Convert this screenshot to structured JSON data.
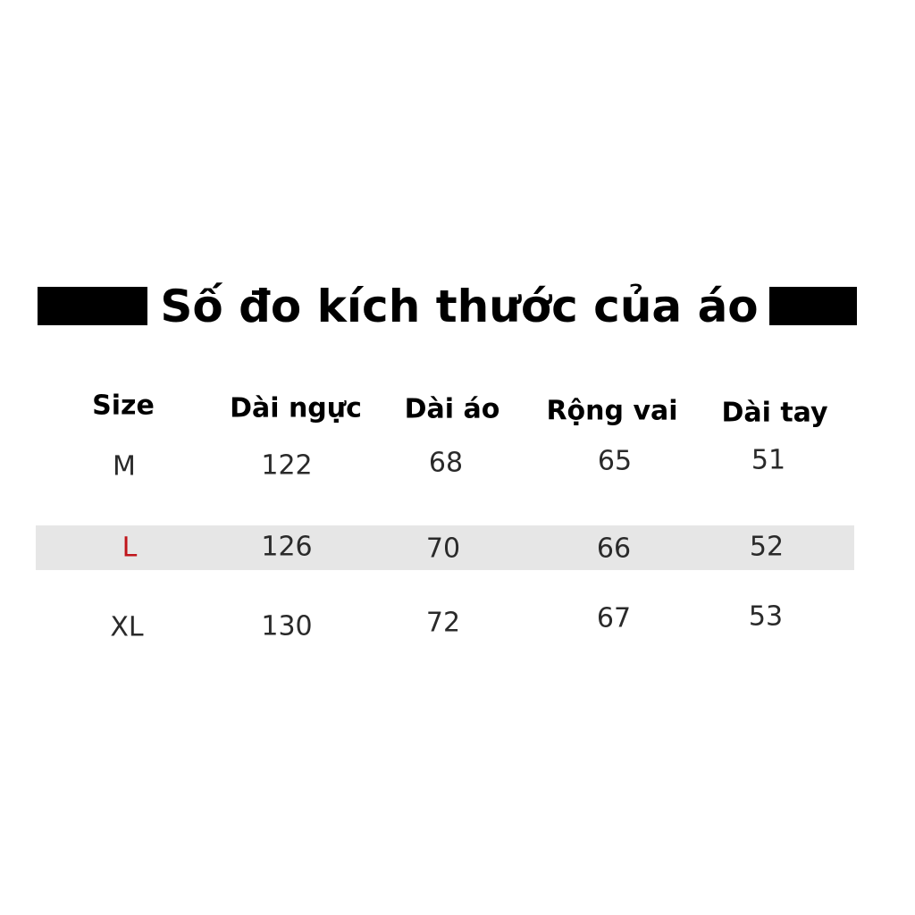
{
  "title": "Số đo kích thước của áo",
  "colors": {
    "title_bar": "#000000",
    "highlight_row": "#e6e6e6",
    "highlight_size": "#c0151b",
    "text": "#2a2a2a"
  },
  "table": {
    "headers": [
      "Size",
      "Dài ngực",
      "Dài áo",
      "Rộng vai",
      "Dài tay"
    ],
    "rows": [
      {
        "size": "M",
        "values": [
          "122",
          "68",
          "65",
          "51"
        ],
        "highlight": false
      },
      {
        "size": "L",
        "values": [
          "126",
          "70",
          "66",
          "52"
        ],
        "highlight": true
      },
      {
        "size": "XL",
        "values": [
          "130",
          "72",
          "67",
          "53"
        ],
        "highlight": false
      }
    ]
  }
}
